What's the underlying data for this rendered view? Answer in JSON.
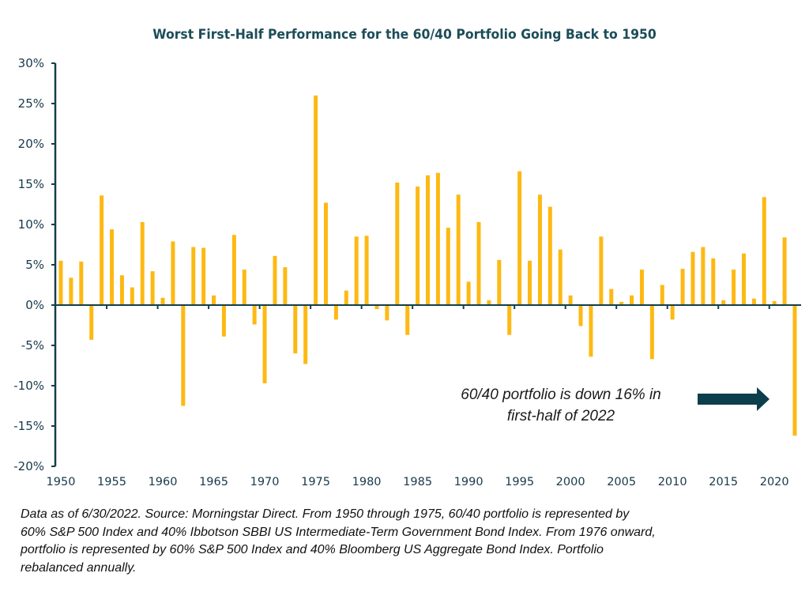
{
  "chart_data": {
    "type": "bar",
    "title": "Worst First-Half Performance for the 60/40 Portfolio Going Back to 1950",
    "xlabel": "",
    "ylabel": "",
    "ylim": [
      -20,
      30
    ],
    "yticks": [
      30,
      25,
      20,
      15,
      10,
      5,
      0,
      -5,
      -10,
      -15,
      -20
    ],
    "ytick_labels": [
      "30%",
      "25%",
      "20%",
      "15%",
      "10%",
      "5%",
      "0%",
      "-5%",
      "-10%",
      "-15%",
      "-20%"
    ],
    "xticks": [
      1950,
      1955,
      1960,
      1965,
      1970,
      1975,
      1980,
      1985,
      1990,
      1995,
      2000,
      2005,
      2010,
      2015,
      2020
    ],
    "xtick_labels": [
      "1950",
      "1955",
      "1960",
      "1965",
      "1970",
      "1975",
      "1980",
      "1985",
      "1990",
      "1995",
      "2000",
      "2005",
      "2010",
      "2015",
      "2020"
    ],
    "grid": false,
    "bar_color": "#FDB913",
    "axis_color": "#123f4d",
    "categories": [
      1950,
      1951,
      1952,
      1953,
      1954,
      1955,
      1956,
      1957,
      1958,
      1959,
      1960,
      1961,
      1962,
      1963,
      1964,
      1965,
      1966,
      1967,
      1968,
      1969,
      1970,
      1971,
      1972,
      1973,
      1974,
      1975,
      1976,
      1977,
      1978,
      1979,
      1980,
      1981,
      1982,
      1983,
      1984,
      1985,
      1986,
      1987,
      1988,
      1989,
      1990,
      1991,
      1992,
      1993,
      1994,
      1995,
      1996,
      1997,
      1998,
      1999,
      2000,
      2001,
      2002,
      2003,
      2004,
      2005,
      2006,
      2007,
      2008,
      2009,
      2010,
      2011,
      2012,
      2013,
      2014,
      2015,
      2016,
      2017,
      2018,
      2019,
      2020,
      2021,
      2022
    ],
    "values": [
      5.5,
      3.4,
      5.4,
      -4.3,
      13.6,
      9.4,
      3.7,
      2.2,
      10.3,
      4.2,
      0.9,
      7.9,
      -12.5,
      7.2,
      7.1,
      1.2,
      -3.9,
      8.7,
      4.4,
      -2.4,
      -9.7,
      6.1,
      4.7,
      -6.0,
      -7.3,
      26.0,
      12.7,
      -1.8,
      1.8,
      8.5,
      8.6,
      -0.5,
      -1.9,
      15.2,
      -3.7,
      14.7,
      16.1,
      16.4,
      9.6,
      13.7,
      2.9,
      10.3,
      0.6,
      5.6,
      -3.7,
      16.6,
      5.5,
      13.7,
      12.2,
      6.9,
      1.2,
      -2.6,
      -6.4,
      8.5,
      2.0,
      0.4,
      1.2,
      4.4,
      -6.7,
      2.5,
      -1.8,
      4.5,
      6.6,
      7.2,
      5.8,
      0.6,
      4.4,
      6.4,
      0.8,
      13.4,
      0.5,
      8.4,
      -16.2
    ],
    "annotation": {
      "line1": "60/40 portfolio is down 16% in",
      "line2": "first-half of 2022",
      "arrow_color": "#0d3e4c"
    }
  },
  "footnote": {
    "line1": "Data as of 6/30/2022. Source: Morningstar Direct. From 1950 through 1975, 60/40 portfolio is represented by",
    "line2": "60% S&P 500 Index and 40% Ibbotson SBBI US Intermediate-Term Government Bond Index. From 1976 onward,",
    "line3": "portfolio is represented by 60% S&P 500 Index and 40% Bloomberg US Aggregate Bond Index. Portfolio",
    "line4": "rebalanced annually."
  }
}
